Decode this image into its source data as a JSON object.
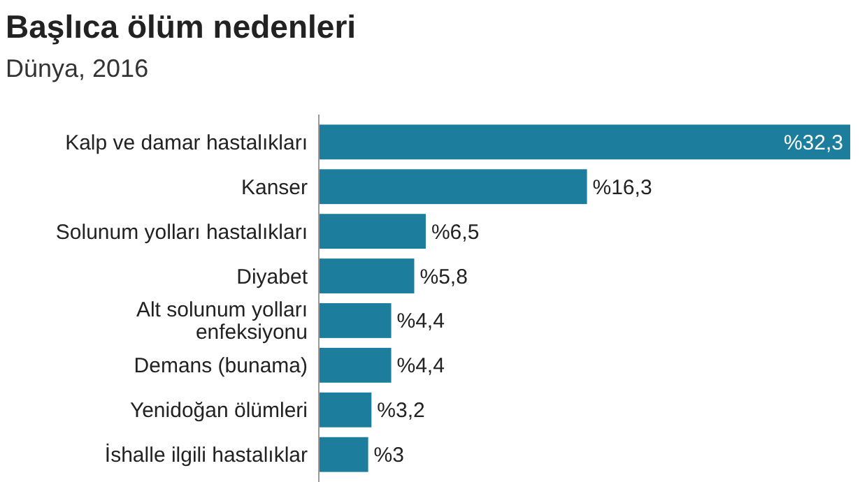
{
  "chart_data": {
    "type": "bar",
    "orientation": "horizontal",
    "title": "Başlıca ölüm nedenleri",
    "subtitle": "Dünya, 2016",
    "categories": [
      "Kalp ve damar hastalıkları",
      "Kanser",
      "Solunum yolları hastalıkları",
      "Diyabet",
      "Alt solunum yolları enfeksiyonu",
      "Demans (bunama)",
      "Yenidoğan ölümleri",
      "İshalle ilgili hastalıklar"
    ],
    "values": [
      32.3,
      16.3,
      6.5,
      5.8,
      4.4,
      4.4,
      3.2,
      3
    ],
    "value_labels": [
      "%32,3",
      "%16,3",
      "%6,5",
      "%5,8",
      "%4,4",
      "%4,4",
      "%3,2",
      "%3"
    ],
    "color": "#1c7d9c",
    "xlim": [
      0,
      32.3
    ],
    "tick_labels": "y"
  }
}
